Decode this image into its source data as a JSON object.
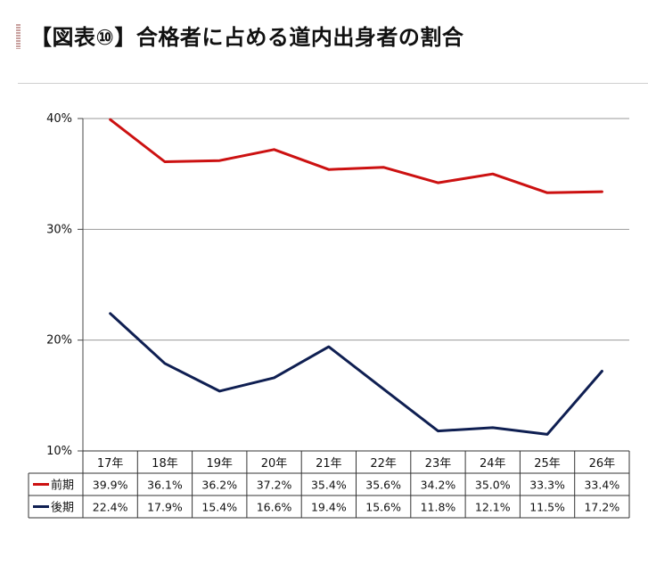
{
  "title": "【図表⑩】合格者に占める道内出身者の割合",
  "chart_data": {
    "type": "line",
    "categories": [
      "17年",
      "18年",
      "19年",
      "20年",
      "21年",
      "22年",
      "23年",
      "24年",
      "25年",
      "26年"
    ],
    "ylim": [
      10,
      40
    ],
    "yticks": [
      10,
      20,
      30,
      40
    ],
    "ytick_labels": [
      "10%",
      "20%",
      "30%",
      "40%"
    ],
    "grid": true,
    "legend": "data-table-left",
    "series": [
      {
        "name": "前期",
        "color": "#cc1111",
        "values": [
          39.9,
          36.1,
          36.2,
          37.2,
          35.4,
          35.6,
          34.2,
          35.0,
          33.3,
          33.4
        ],
        "labels": [
          "39.9%",
          "36.1%",
          "36.2%",
          "37.2%",
          "35.4%",
          "35.6%",
          "34.2%",
          "35.0%",
          "33.3%",
          "33.4%"
        ]
      },
      {
        "name": "後期",
        "color": "#0f1f52",
        "values": [
          22.4,
          17.9,
          15.4,
          16.6,
          19.4,
          15.6,
          11.8,
          12.1,
          11.5,
          17.2
        ],
        "labels": [
          "22.4%",
          "17.9%",
          "15.4%",
          "16.6%",
          "19.4%",
          "15.6%",
          "11.8%",
          "12.1%",
          "11.5%",
          "17.2%"
        ]
      }
    ]
  }
}
